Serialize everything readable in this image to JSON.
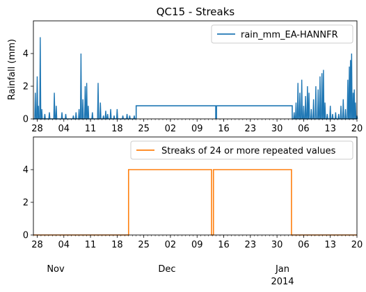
{
  "chart_data": [
    {
      "type": "line",
      "title": "QC15 - Streaks",
      "ylabel": "Rainfall (mm)",
      "xlabel": "",
      "ylim": [
        0,
        6
      ],
      "yticks": [
        0,
        2,
        4
      ],
      "x_day_range": [
        0,
        85
      ],
      "xtick_labels": [
        "28",
        "04",
        "11",
        "18",
        "25",
        "02",
        "09",
        "16",
        "23",
        "30",
        "06",
        "13",
        "20"
      ],
      "month_labels": [
        "Nov",
        "Dec",
        "Jan"
      ],
      "year_label": "2014",
      "legend": {
        "entries": [
          "rain_mm_EA-HANNFR"
        ],
        "placement": "upper right"
      },
      "series": [
        {
          "name": "rain_mm_EA-HANNFR",
          "color": "#1f77b4",
          "spikes": [
            [
              0.5,
              1.6
            ],
            [
              1.0,
              2.6
            ],
            [
              1.3,
              0.8
            ],
            [
              1.8,
              5.0
            ],
            [
              2.2,
              0.6
            ],
            [
              3.0,
              0.3
            ],
            [
              4.2,
              0.4
            ],
            [
              5.5,
              1.6
            ],
            [
              6.0,
              0.8
            ],
            [
              7.5,
              0.4
            ],
            [
              8.5,
              0.3
            ],
            [
              10.5,
              0.2
            ],
            [
              11.2,
              0.4
            ],
            [
              12.0,
              0.6
            ],
            [
              12.5,
              4.0
            ],
            [
              13.0,
              1.2
            ],
            [
              13.6,
              2.0
            ],
            [
              14.0,
              2.2
            ],
            [
              14.4,
              0.8
            ],
            [
              15.5,
              0.4
            ],
            [
              17.0,
              2.2
            ],
            [
              17.6,
              1.0
            ],
            [
              18.4,
              0.2
            ],
            [
              19.0,
              0.5
            ],
            [
              19.5,
              0.3
            ],
            [
              20.3,
              0.6
            ],
            [
              21.2,
              0.2
            ],
            [
              22.0,
              0.6
            ],
            [
              23.5,
              0.2
            ],
            [
              24.6,
              0.3
            ],
            [
              25.3,
              0.2
            ],
            [
              26.5,
              0.2
            ]
          ],
          "flat_segments": [
            {
              "from": 27.0,
              "to": 47.9,
              "value": 0.8
            },
            {
              "from": 48.1,
              "to": 68.0,
              "value": 0.8
            }
          ],
          "spikes_after": [
            [
              68.5,
              0.4
            ],
            [
              69.0,
              1.0
            ],
            [
              69.5,
              2.2
            ],
            [
              70.0,
              1.6
            ],
            [
              70.5,
              2.4
            ],
            [
              71.0,
              0.8
            ],
            [
              71.5,
              1.4
            ],
            [
              72.0,
              2.0
            ],
            [
              72.4,
              1.6
            ],
            [
              73.0,
              0.6
            ],
            [
              73.6,
              1.2
            ],
            [
              74.2,
              2.0
            ],
            [
              74.8,
              1.8
            ],
            [
              75.3,
              2.6
            ],
            [
              75.8,
              2.8
            ],
            [
              76.2,
              3.0
            ],
            [
              76.6,
              1.0
            ],
            [
              77.2,
              0.3
            ],
            [
              78.0,
              0.8
            ],
            [
              78.6,
              0.3
            ],
            [
              79.4,
              0.4
            ],
            [
              80.2,
              0.3
            ],
            [
              80.8,
              0.8
            ],
            [
              81.4,
              1.2
            ],
            [
              82.0,
              0.6
            ],
            [
              82.6,
              2.4
            ],
            [
              83.0,
              3.2
            ],
            [
              83.3,
              3.6
            ],
            [
              83.6,
              4.0
            ],
            [
              84.0,
              1.6
            ],
            [
              84.3,
              1.8
            ],
            [
              84.6,
              1.0
            ],
            [
              85.0,
              0.2
            ]
          ]
        }
      ]
    },
    {
      "type": "line",
      "title": "",
      "ylabel": "",
      "xlabel": "",
      "ylim": [
        0,
        6
      ],
      "yticks": [
        0,
        2,
        4
      ],
      "x_day_range": [
        0,
        85
      ],
      "xtick_labels": [
        "28",
        "04",
        "11",
        "18",
        "25",
        "02",
        "09",
        "16",
        "23",
        "30",
        "06",
        "13",
        "20"
      ],
      "month_labels": [
        "Nov",
        "Dec",
        "Jan"
      ],
      "year_label": "2014",
      "legend": {
        "entries": [
          "Streaks of 24 or more repeated values"
        ],
        "placement": "upper right"
      },
      "series": [
        {
          "name": "Streaks of 24 or more repeated values",
          "color": "#ff7f0e",
          "points": [
            [
              0,
              0
            ],
            [
              25,
              0
            ],
            [
              25,
              4
            ],
            [
              46.8,
              4
            ],
            [
              46.8,
              0
            ],
            [
              47.3,
              0
            ],
            [
              47.3,
              4
            ],
            [
              67.8,
              4
            ],
            [
              67.8,
              0
            ],
            [
              85,
              0
            ]
          ]
        }
      ]
    }
  ]
}
